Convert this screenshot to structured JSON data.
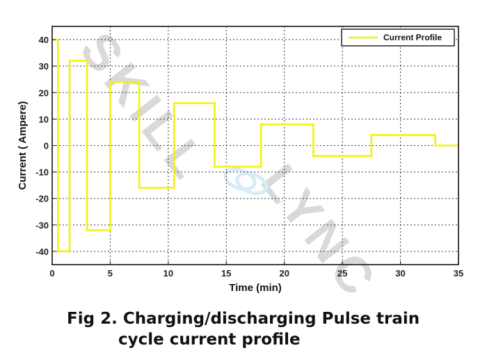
{
  "chart_data": {
    "type": "line",
    "step": true,
    "xlabel": "Time (min)",
    "ylabel": "Current ( Ampere)",
    "xlim": [
      0,
      35
    ],
    "ylim": [
      -45,
      45
    ],
    "xticks": [
      0,
      5,
      10,
      15,
      20,
      25,
      30,
      35
    ],
    "yticks": [
      -40,
      -30,
      -20,
      -10,
      0,
      10,
      20,
      30,
      40
    ],
    "grid": true,
    "legend_position": "top-right",
    "series": [
      {
        "name": "Current Profile",
        "color": "#f2f20a",
        "x": [
          0,
          0.5,
          0.5,
          1.5,
          1.5,
          3,
          3,
          5,
          5,
          7.5,
          7.5,
          10.5,
          10.5,
          14,
          14,
          18,
          18,
          22.5,
          22.5,
          27.5,
          27.5,
          33,
          33,
          35
        ],
        "y": [
          40,
          40,
          -40,
          -40,
          32,
          32,
          -32,
          -32,
          24,
          24,
          -16,
          -16,
          16,
          16,
          -8,
          -8,
          8,
          8,
          -4,
          -4,
          4,
          4,
          0,
          0
        ]
      }
    ]
  },
  "watermark": "SKILL LYNC",
  "caption": {
    "line1": "Fig 2. Charging/discharging Pulse train",
    "line2": "cycle current profile"
  }
}
